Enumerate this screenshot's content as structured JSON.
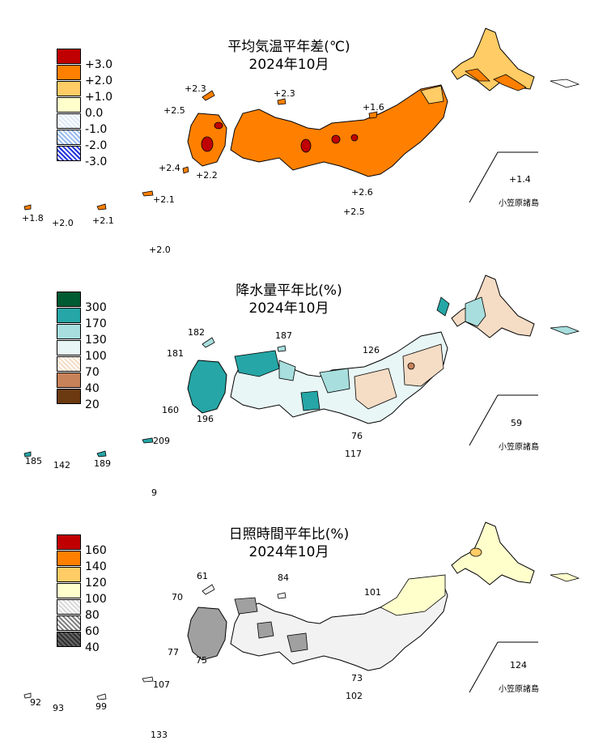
{
  "panels": [
    {
      "title": "平均気温平年差(℃)",
      "subtitle": "2024年10月",
      "legend": [
        {
          "label": "+3.0",
          "color": "#c00000"
        },
        {
          "label": "+2.0",
          "color": "#ff8000"
        },
        {
          "label": "+1.0",
          "color": "#ffcc66"
        },
        {
          "label": "0.0",
          "color": "#ffffcc"
        },
        {
          "label": "-1.0",
          "color": "#dde9f6"
        },
        {
          "label": "-2.0",
          "color": "#99bbf0"
        },
        {
          "label": "-3.0",
          "color": "#2233dd"
        }
      ],
      "values": {
        "hokkaido_south": "+2.3",
        "okinawa_n": "+2.3",
        "sado_tsushima": "+2.5",
        "tohoku_n": "+1.6",
        "kyushu_s": "+2.4",
        "kyushu_s2": "+2.2",
        "hachijo": "+2.6",
        "izu_s": "+2.5",
        "ogasawara": "+1.4",
        "sakishima": "+1.8",
        "yonaguni": "+2.0",
        "okinawa": "+2.1",
        "amami": "+2.1",
        "minamidaito": "+2.0"
      },
      "inset_label": "小笠原諸島"
    },
    {
      "title": "降水量平年比(%)",
      "subtitle": "2024年10月",
      "legend": [
        {
          "label": "300",
          "color": "#005a32"
        },
        {
          "label": "170",
          "color": "#26a6a6"
        },
        {
          "label": "130",
          "color": "#a8dede"
        },
        {
          "label": "100",
          "color": "#e8f6f6"
        },
        {
          "label": "70",
          "color": "#f5dcc5"
        },
        {
          "label": "40",
          "color": "#c8825a"
        },
        {
          "label": "20",
          "color": "#6b3a10"
        }
      ],
      "values": {
        "hokkaido_south": "182",
        "okinawa_n": "187",
        "sado_tsushima": "181",
        "tohoku_n": "126",
        "kyushu_s": "160",
        "kyushu_s2": "196",
        "hachijo": "76",
        "izu_s": "117",
        "ogasawara": "59",
        "sakishima": "185",
        "yonaguni": "142",
        "okinawa": "189",
        "amami": "209",
        "minamidaito": "9"
      },
      "inset_label": "小笠原諸島"
    },
    {
      "title": "日照時間平年比(%)",
      "subtitle": "2024年10月",
      "legend": [
        {
          "label": "160",
          "color": "#c00000"
        },
        {
          "label": "140",
          "color": "#ff8000"
        },
        {
          "label": "120",
          "color": "#ffcc66"
        },
        {
          "label": "100",
          "color": "#ffffcc"
        },
        {
          "label": "80",
          "color": "#f2f2f2"
        },
        {
          "label": "60",
          "color": "#a0a0a0"
        },
        {
          "label": "40",
          "color": "#303030"
        }
      ],
      "values": {
        "hokkaido_south": "61",
        "okinawa_n": "84",
        "sado_tsushima": "70",
        "tohoku_n": "101",
        "kyushu_s": "77",
        "kyushu_s2": "75",
        "hachijo": "73",
        "izu_s": "102",
        "ogasawara": "124",
        "sakishima": "92",
        "yonaguni": "93",
        "okinawa": "99",
        "amami": "107",
        "minamidaito": "133"
      },
      "inset_label": "小笠原諸島"
    }
  ]
}
